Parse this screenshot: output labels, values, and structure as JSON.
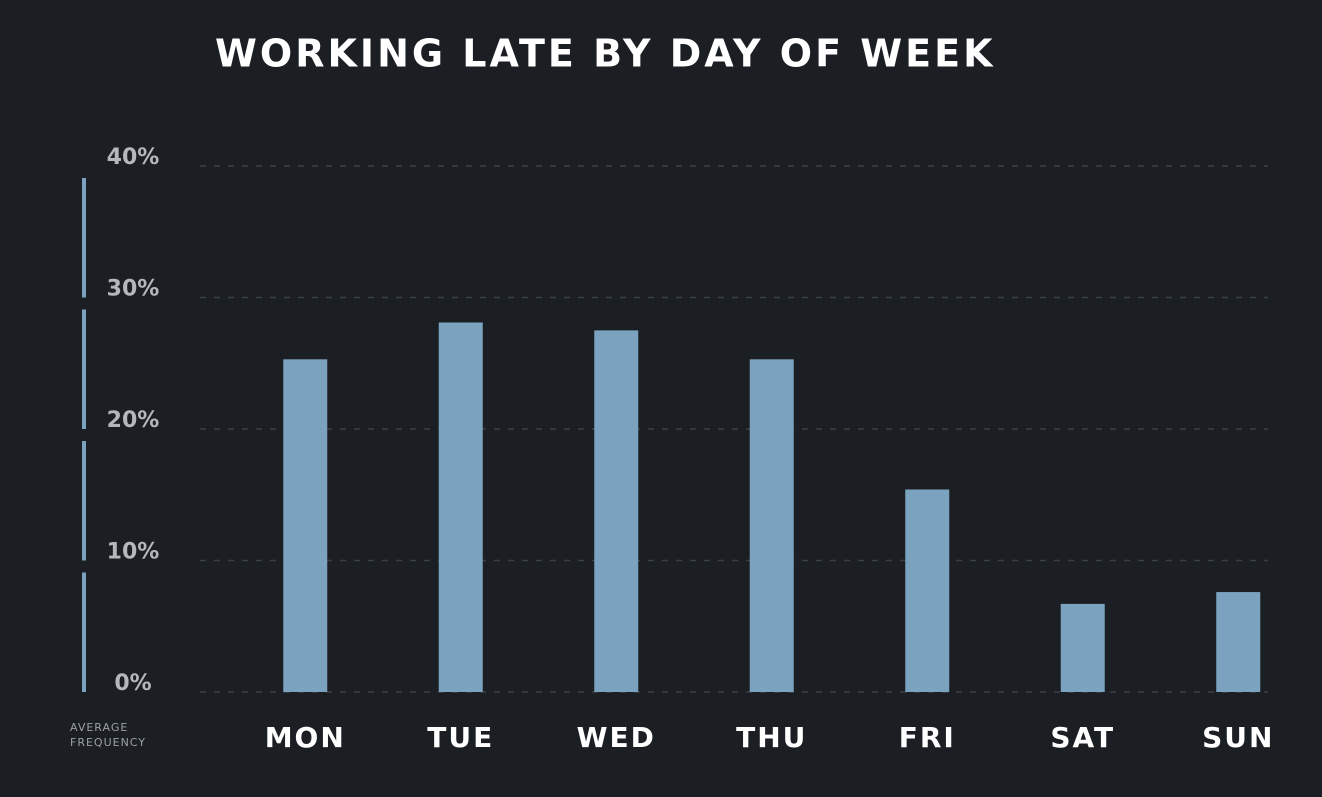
{
  "chart_data": {
    "type": "bar",
    "title": "WORKING LATE BY DAY OF WEEK",
    "y_axis_label": "AVERAGE FREQUENCY",
    "categories": [
      "MON",
      "TUE",
      "WED",
      "THU",
      "FRI",
      "SAT",
      "SUN"
    ],
    "values": [
      25.3,
      28.1,
      27.5,
      25.3,
      15.4,
      6.7,
      7.6
    ],
    "color": "#7ba3bf",
    "ylim": [
      0,
      40
    ],
    "yticks": [
      {
        "value": 0,
        "label": "0%"
      },
      {
        "value": 10,
        "label": "10%"
      },
      {
        "value": 20,
        "label": "20%"
      },
      {
        "value": 30,
        "label": "30%"
      },
      {
        "value": 40,
        "label": "40%"
      }
    ],
    "grid": true
  }
}
